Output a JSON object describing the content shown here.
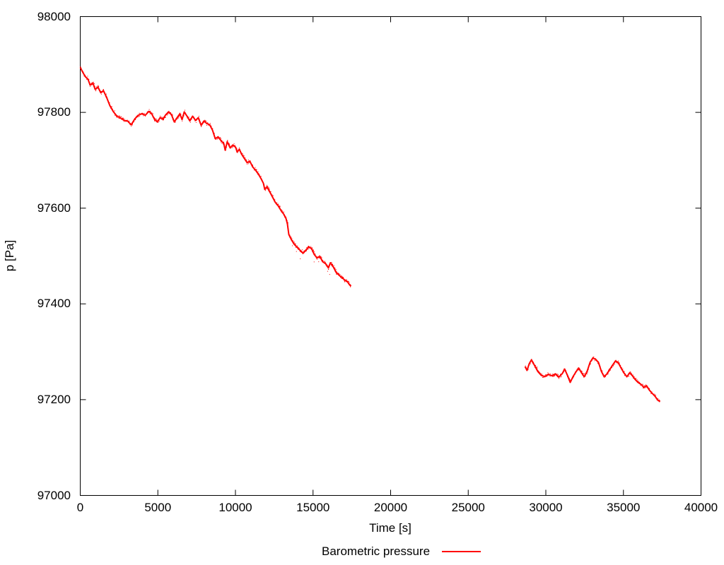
{
  "chart_data": {
    "type": "scatter",
    "title": "",
    "xlabel": "Time [s]",
    "ylabel": "p [Pa]",
    "legend_label": "Barometric pressure",
    "legend_position": "below-plot-center",
    "grid": false,
    "series_color": "#ff0000",
    "axis_color": "#000000",
    "background_color": "#ffffff",
    "xlim": [
      0,
      40000
    ],
    "ylim": [
      97000,
      98000
    ],
    "xticks": [
      0,
      5000,
      10000,
      15000,
      20000,
      25000,
      30000,
      35000,
      40000
    ],
    "yticks": [
      97000,
      97200,
      97400,
      97600,
      97800,
      98000
    ],
    "series": [
      {
        "name": "Barometric pressure",
        "segments": [
          [
            [
              0,
              97894
            ],
            [
              140,
              97885
            ],
            [
              320,
              97875
            ],
            [
              500,
              97869
            ],
            [
              640,
              97857
            ],
            [
              820,
              97861
            ],
            [
              960,
              97848
            ],
            [
              1140,
              97853
            ],
            [
              1320,
              97841
            ],
            [
              1500,
              97845
            ],
            [
              1690,
              97832
            ],
            [
              1910,
              97814
            ],
            [
              2140,
              97801
            ],
            [
              2370,
              97792
            ],
            [
              2600,
              97788
            ],
            [
              2830,
              97783
            ],
            [
              3050,
              97782
            ],
            [
              3280,
              97774
            ],
            [
              3510,
              97786
            ],
            [
              3740,
              97794
            ],
            [
              3960,
              97797
            ],
            [
              4190,
              97794
            ],
            [
              4420,
              97802
            ],
            [
              4600,
              97797
            ],
            [
              4780,
              97786
            ],
            [
              4970,
              97780
            ],
            [
              5150,
              97789
            ],
            [
              5330,
              97786
            ],
            [
              5510,
              97795
            ],
            [
              5700,
              97801
            ],
            [
              5880,
              97795
            ],
            [
              6060,
              97780
            ],
            [
              6240,
              97789
            ],
            [
              6420,
              97797
            ],
            [
              6560,
              97785
            ],
            [
              6700,
              97801
            ],
            [
              6880,
              97792
            ],
            [
              7060,
              97782
            ],
            [
              7240,
              97792
            ],
            [
              7430,
              97783
            ],
            [
              7610,
              97789
            ],
            [
              7790,
              97773
            ],
            [
              7970,
              97782
            ],
            [
              8150,
              97777
            ],
            [
              8340,
              97774
            ],
            [
              8520,
              97763
            ],
            [
              8700,
              97745
            ],
            [
              8880,
              97749
            ],
            [
              9070,
              97741
            ],
            [
              9250,
              97735
            ],
            [
              9340,
              97721
            ],
            [
              9470,
              97739
            ],
            [
              9660,
              97726
            ],
            [
              9840,
              97732
            ],
            [
              10020,
              97727
            ],
            [
              10110,
              97717
            ],
            [
              10250,
              97723
            ],
            [
              10390,
              97713
            ],
            [
              10570,
              97704
            ],
            [
              10750,
              97695
            ],
            [
              10930,
              97698
            ],
            [
              11110,
              97686
            ],
            [
              11300,
              97679
            ],
            [
              11480,
              97671
            ],
            [
              11660,
              97661
            ],
            [
              11800,
              97652
            ],
            [
              11890,
              97639
            ],
            [
              12030,
              97645
            ],
            [
              12210,
              97634
            ],
            [
              12390,
              97623
            ],
            [
              12570,
              97612
            ],
            [
              12750,
              97605
            ],
            [
              12940,
              97595
            ],
            [
              13120,
              97587
            ],
            [
              13260,
              97578
            ],
            [
              13350,
              97567
            ],
            [
              13440,
              97545
            ],
            [
              13620,
              97533
            ],
            [
              13800,
              97524
            ],
            [
              13980,
              97518
            ],
            [
              14170,
              97512
            ],
            [
              14350,
              97506
            ],
            [
              14530,
              97512
            ],
            [
              14710,
              97519
            ],
            [
              14900,
              97516
            ],
            [
              15080,
              97503
            ],
            [
              15260,
              97496
            ],
            [
              15440,
              97499
            ],
            [
              15620,
              97488
            ],
            [
              15810,
              97484
            ],
            [
              15990,
              97475
            ],
            [
              16120,
              97486
            ],
            [
              16310,
              97477
            ],
            [
              16490,
              97466
            ],
            [
              16670,
              97460
            ],
            [
              16850,
              97455
            ],
            [
              17040,
              97450
            ],
            [
              17220,
              97446
            ],
            [
              17350,
              97440
            ],
            [
              17450,
              97437
            ]
          ],
          [
            [
              28660,
              97269
            ],
            [
              28790,
              97261
            ],
            [
              28930,
              97275
            ],
            [
              29070,
              97283
            ],
            [
              29250,
              97273
            ],
            [
              29480,
              97259
            ],
            [
              29700,
              97251
            ],
            [
              29930,
              97248
            ],
            [
              30160,
              97253
            ],
            [
              30390,
              97250
            ],
            [
              30620,
              97254
            ],
            [
              30840,
              97247
            ],
            [
              31070,
              97255
            ],
            [
              31210,
              97264
            ],
            [
              31390,
              97251
            ],
            [
              31570,
              97236
            ],
            [
              31750,
              97248
            ],
            [
              31940,
              97258
            ],
            [
              32120,
              97266
            ],
            [
              32300,
              97256
            ],
            [
              32480,
              97248
            ],
            [
              32670,
              97260
            ],
            [
              32850,
              97278
            ],
            [
              33030,
              97287
            ],
            [
              33210,
              97284
            ],
            [
              33390,
              97278
            ],
            [
              33580,
              97259
            ],
            [
              33760,
              97248
            ],
            [
              33940,
              97254
            ],
            [
              34120,
              97263
            ],
            [
              34300,
              97272
            ],
            [
              34490,
              97281
            ],
            [
              34670,
              97277
            ],
            [
              34850,
              97266
            ],
            [
              35030,
              97256
            ],
            [
              35220,
              97248
            ],
            [
              35400,
              97256
            ],
            [
              35580,
              97250
            ],
            [
              35760,
              97242
            ],
            [
              35940,
              97236
            ],
            [
              36130,
              97232
            ],
            [
              36310,
              97226
            ],
            [
              36490,
              97229
            ],
            [
              36670,
              97220
            ],
            [
              36860,
              97213
            ],
            [
              37040,
              97207
            ],
            [
              37220,
              97199
            ],
            [
              37360,
              97196
            ]
          ]
        ]
      }
    ]
  }
}
